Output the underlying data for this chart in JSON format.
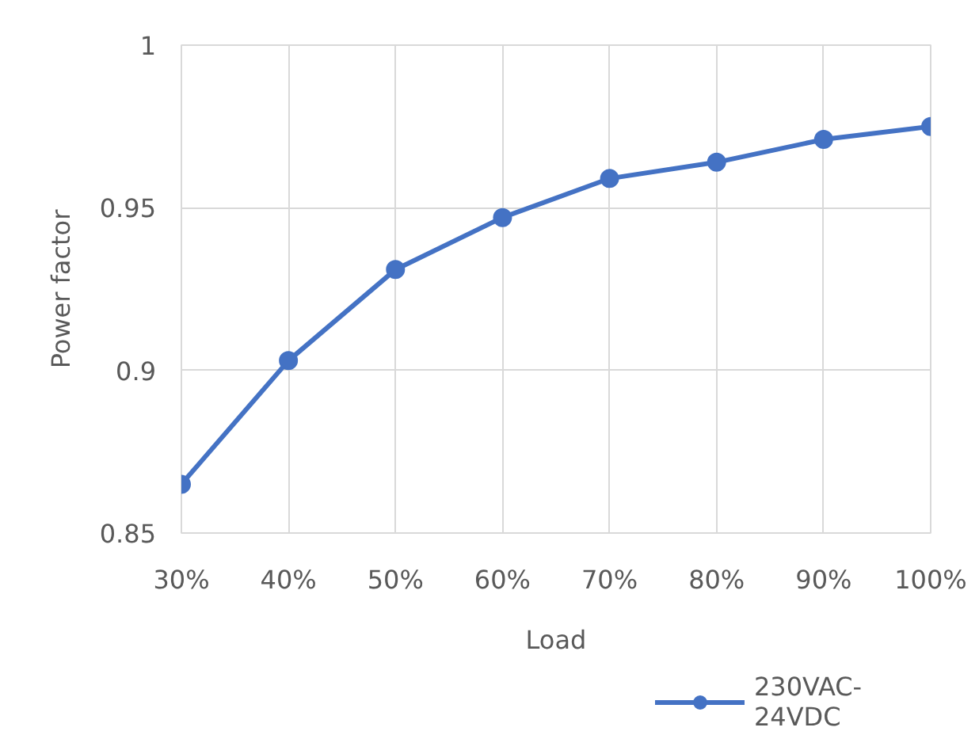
{
  "chart_data": {
    "type": "line",
    "xlabel": "Load",
    "ylabel": "Power factor",
    "categories": [
      "30%",
      "40%",
      "50%",
      "60%",
      "70%",
      "80%",
      "90%",
      "100%"
    ],
    "series": [
      {
        "name": "230VAC-24VDC",
        "color": "#4472c4",
        "values": [
          0.865,
          0.903,
          0.931,
          0.947,
          0.959,
          0.964,
          0.971,
          0.975
        ]
      }
    ],
    "ylim": [
      0.85,
      1
    ],
    "yticks": [
      0.85,
      0.9,
      0.95,
      1
    ],
    "grid": true,
    "legend": "bottom",
    "marker": "circle",
    "line_style": "solid"
  }
}
